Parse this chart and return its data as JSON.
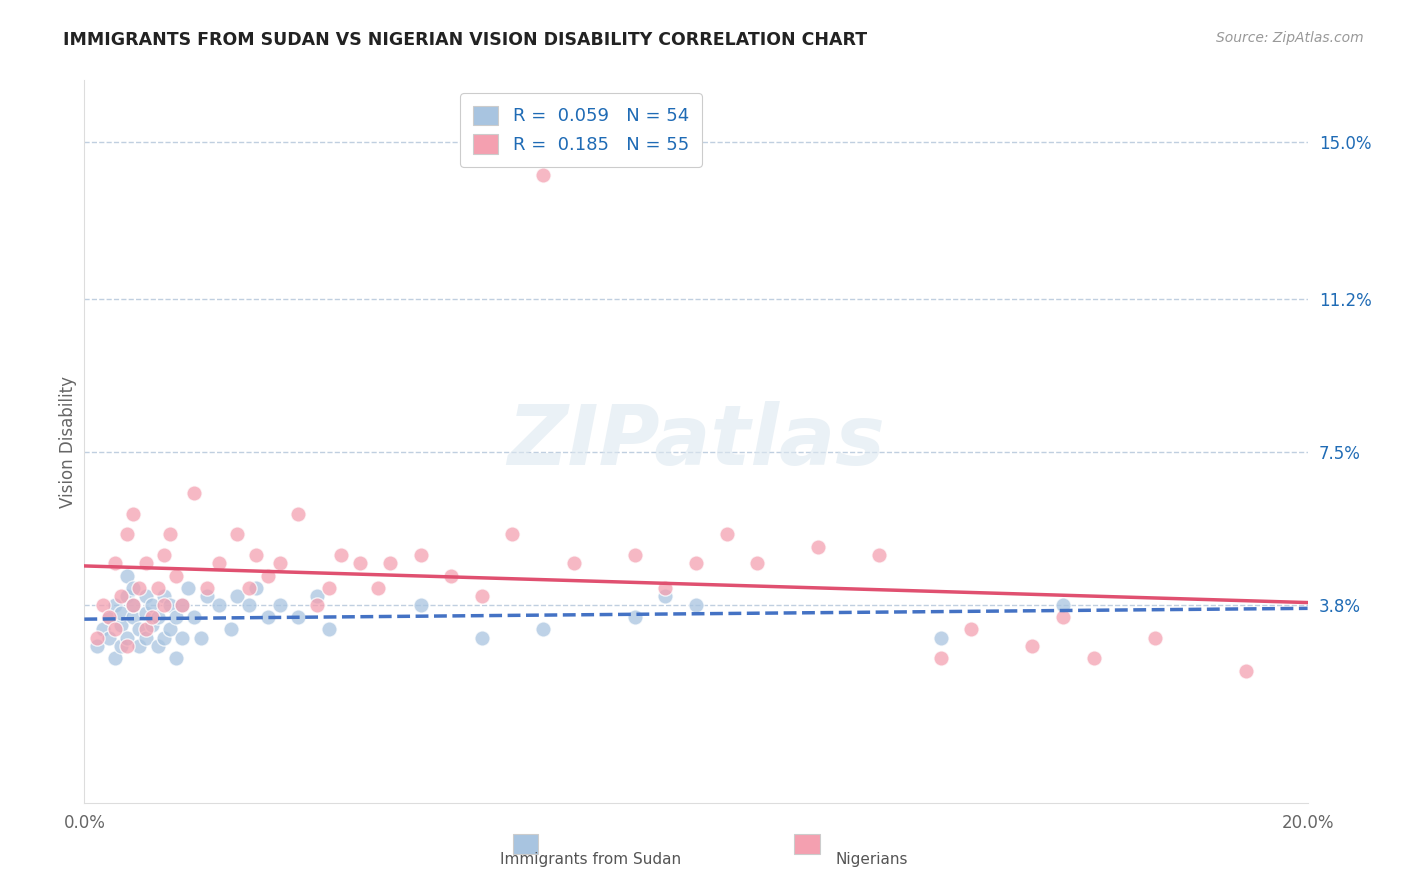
{
  "title": "IMMIGRANTS FROM SUDAN VS NIGERIAN VISION DISABILITY CORRELATION CHART",
  "source": "Source: ZipAtlas.com",
  "ylabel": "Vision Disability",
  "x_min": 0.0,
  "x_max": 0.2,
  "y_min": -0.01,
  "y_max": 0.165,
  "ytick_values": [
    0.038,
    0.075,
    0.112,
    0.15
  ],
  "ytick_labels": [
    "3.8%",
    "7.5%",
    "11.2%",
    "15.0%"
  ],
  "xtick_labels": [
    "0.0%",
    "20.0%"
  ],
  "xtick_values": [
    0.0,
    0.2
  ],
  "legend_labels": [
    "Immigrants from Sudan",
    "Nigerians"
  ],
  "sudan_color": "#a8c4e0",
  "nigerian_color": "#f4a0b0",
  "sudan_line_color": "#4472c4",
  "nigerian_line_color": "#e05070",
  "r_sudan": "0.059",
  "n_sudan": "54",
  "r_nigerian": "0.185",
  "n_nigerian": "55",
  "r_label_color": "#1f6bb5",
  "watermark_text": "ZIPatlas",
  "background_color": "#ffffff",
  "grid_color": "#c0cfe0",
  "sudan_scatter_x": [
    0.002,
    0.003,
    0.004,
    0.004,
    0.005,
    0.005,
    0.006,
    0.006,
    0.006,
    0.007,
    0.007,
    0.007,
    0.008,
    0.008,
    0.008,
    0.009,
    0.009,
    0.01,
    0.01,
    0.01,
    0.011,
    0.011,
    0.012,
    0.012,
    0.013,
    0.013,
    0.014,
    0.014,
    0.015,
    0.015,
    0.016,
    0.016,
    0.017,
    0.018,
    0.019,
    0.02,
    0.022,
    0.024,
    0.025,
    0.027,
    0.028,
    0.03,
    0.032,
    0.035,
    0.038,
    0.04,
    0.055,
    0.065,
    0.075,
    0.09,
    0.095,
    0.1,
    0.14,
    0.16
  ],
  "sudan_scatter_y": [
    0.028,
    0.032,
    0.03,
    0.035,
    0.025,
    0.038,
    0.028,
    0.033,
    0.036,
    0.03,
    0.04,
    0.045,
    0.035,
    0.038,
    0.042,
    0.028,
    0.032,
    0.03,
    0.036,
    0.04,
    0.033,
    0.038,
    0.028,
    0.035,
    0.03,
    0.04,
    0.032,
    0.038,
    0.025,
    0.035,
    0.03,
    0.038,
    0.042,
    0.035,
    0.03,
    0.04,
    0.038,
    0.032,
    0.04,
    0.038,
    0.042,
    0.035,
    0.038,
    0.035,
    0.04,
    0.032,
    0.038,
    0.03,
    0.032,
    0.035,
    0.04,
    0.038,
    0.03,
    0.038
  ],
  "nigerian_scatter_x": [
    0.002,
    0.003,
    0.004,
    0.005,
    0.005,
    0.006,
    0.007,
    0.007,
    0.008,
    0.008,
    0.009,
    0.01,
    0.01,
    0.011,
    0.012,
    0.013,
    0.013,
    0.014,
    0.015,
    0.016,
    0.018,
    0.02,
    0.022,
    0.025,
    0.027,
    0.028,
    0.03,
    0.032,
    0.035,
    0.038,
    0.04,
    0.042,
    0.045,
    0.048,
    0.05,
    0.055,
    0.06,
    0.065,
    0.07,
    0.075,
    0.08,
    0.09,
    0.095,
    0.1,
    0.105,
    0.11,
    0.12,
    0.13,
    0.14,
    0.145,
    0.155,
    0.16,
    0.165,
    0.175,
    0.19
  ],
  "nigerian_scatter_y": [
    0.03,
    0.038,
    0.035,
    0.032,
    0.048,
    0.04,
    0.028,
    0.055,
    0.038,
    0.06,
    0.042,
    0.032,
    0.048,
    0.035,
    0.042,
    0.05,
    0.038,
    0.055,
    0.045,
    0.038,
    0.065,
    0.042,
    0.048,
    0.055,
    0.042,
    0.05,
    0.045,
    0.048,
    0.06,
    0.038,
    0.042,
    0.05,
    0.048,
    0.042,
    0.048,
    0.05,
    0.045,
    0.04,
    0.055,
    0.142,
    0.048,
    0.05,
    0.042,
    0.048,
    0.055,
    0.048,
    0.052,
    0.05,
    0.025,
    0.032,
    0.028,
    0.035,
    0.025,
    0.03,
    0.022
  ]
}
